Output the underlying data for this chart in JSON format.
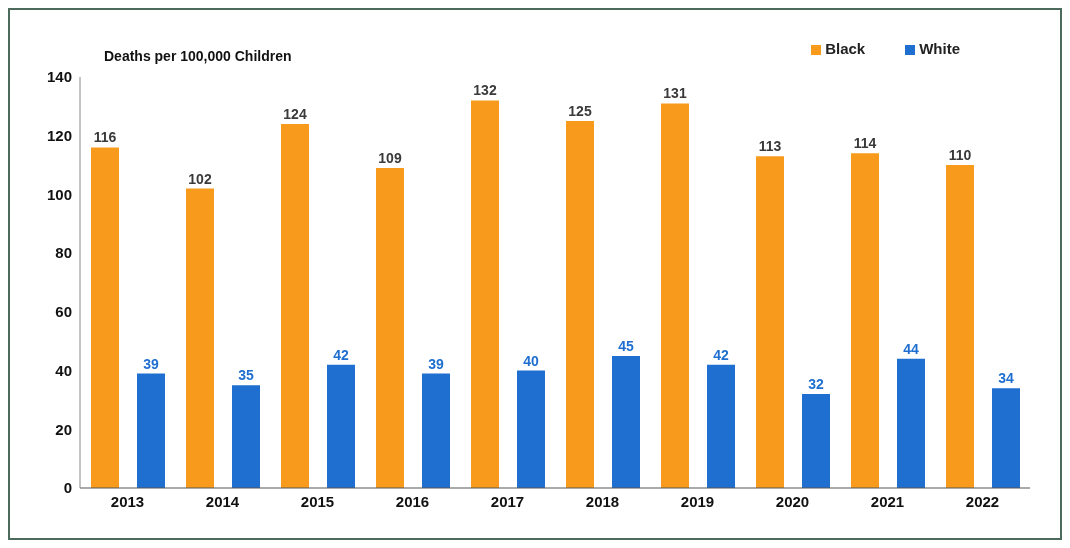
{
  "chart_data": {
    "type": "bar",
    "ylabel": "Deaths per 100,000 Children",
    "categories": [
      "2013",
      "2014",
      "2015",
      "2016",
      "2017",
      "2018",
      "2019",
      "2020",
      "2021",
      "2022"
    ],
    "series": [
      {
        "name": "Black",
        "color": "#f89b1c",
        "values": [
          116,
          102,
          124,
          109,
          132,
          125,
          131,
          113,
          114,
          110
        ]
      },
      {
        "name": "White",
        "color": "#1f6fd0",
        "values": [
          39,
          35,
          42,
          39,
          40,
          45,
          42,
          32,
          44,
          34
        ]
      }
    ],
    "ylim": [
      0,
      140
    ],
    "yticks": [
      0,
      20,
      40,
      60,
      80,
      100,
      120,
      140
    ],
    "grid": false,
    "legend": "top right",
    "data_labels": true
  }
}
